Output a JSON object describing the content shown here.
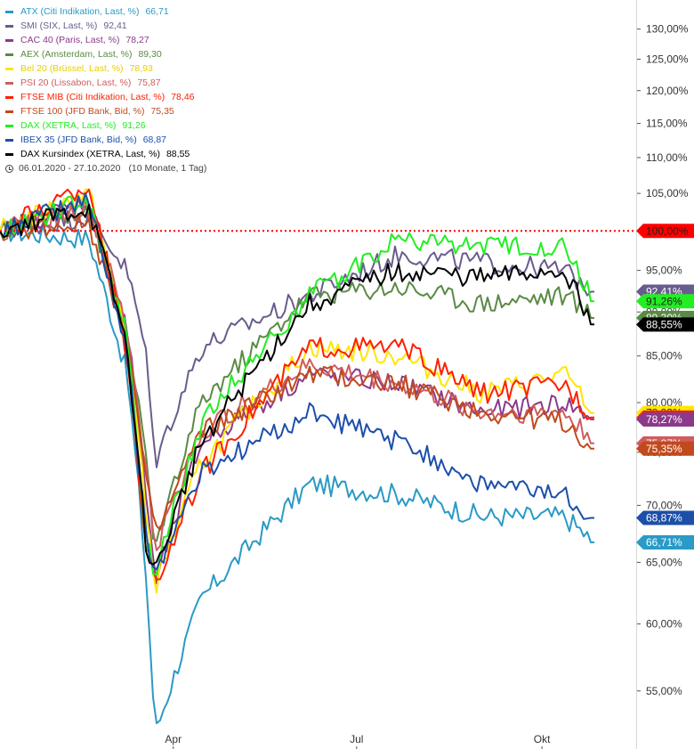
{
  "chart_data": {
    "type": "line",
    "title": "",
    "xlabel": "",
    "ylabel": "",
    "y_scale": "log",
    "ylim": [
      51,
      135
    ],
    "y_ticks": [
      "55,00%",
      "60,00%",
      "65,00%",
      "70,00%",
      "75,00%",
      "80,00%",
      "85,00%",
      "90,00%",
      "95,00%",
      "100,00%",
      "105,00%",
      "110,00%",
      "115,00%",
      "120,00%",
      "125,00%",
      "130,00%"
    ],
    "y_tick_values": [
      55,
      60,
      65,
      70,
      75,
      80,
      85,
      90,
      95,
      100,
      105,
      110,
      115,
      120,
      125,
      130
    ],
    "x_ticks": [
      "Apr",
      "Jul",
      "Okt"
    ],
    "x_tick_dates": [
      "2020-04-01",
      "2020-07-01",
      "2020-10-01"
    ],
    "date_range": [
      "2020-01-06",
      "2020-10-27"
    ],
    "period_text": "06.01.2020 - 27.10.2020",
    "period_span": "(10 Monate, 1 Tag)",
    "reference_line": {
      "value": 100,
      "label": "100,00%",
      "color": "#ff0000"
    },
    "legend_position": "top-left",
    "keypoint_dates": [
      "2020-01-06",
      "2020-02-19",
      "2020-03-09",
      "2020-03-18",
      "2020-03-23",
      "2020-04-15",
      "2020-06-08",
      "2020-07-22",
      "2020-09-01",
      "2020-10-12",
      "2020-10-27"
    ],
    "series": [
      {
        "name": "ATX (Citi Indikation, Last, %)",
        "last": "66,71",
        "end_label": "66,71%",
        "color": "#2a9ac6",
        "values": [
          100,
          99,
          83,
          65,
          52,
          62,
          72,
          71,
          69,
          69,
          66.71
        ]
      },
      {
        "name": "SMI (SIX, Last, %)",
        "last": "92,41",
        "end_label": "92,41%",
        "color": "#6a5c8c",
        "values": [
          100,
          102,
          95,
          86,
          74,
          86,
          92,
          97,
          96,
          95,
          92.41
        ]
      },
      {
        "name": "CAC 40 (Paris, Last, %)",
        "last": "78,27",
        "end_label": "78,27%",
        "color": "#8b3a8b",
        "values": [
          100,
          104,
          88,
          72,
          63,
          76,
          83,
          82,
          79,
          80,
          78.27
        ]
      },
      {
        "name": "AEX (Amsterdam, Last, %)",
        "last": "89,30",
        "end_label": "89,30%",
        "color": "#5a8a45",
        "values": [
          100,
          103,
          87,
          75,
          66,
          80,
          92,
          93,
          91,
          92,
          89.3
        ]
      },
      {
        "name": "Bel 20 (Brüssel, Last, %)",
        "last": "78,93",
        "end_label": "78,93%",
        "color": "#ffe600",
        "values": [
          100,
          105,
          87,
          70,
          63,
          74,
          86,
          85,
          81,
          83,
          78.93
        ]
      },
      {
        "name": "PSI 20 (Lissabon, Last, %)",
        "last": "75,87",
        "end_label": "75,87%",
        "color": "#cf5d5d",
        "values": [
          100,
          103,
          88,
          74,
          66,
          77,
          84,
          82,
          79,
          79,
          75.87
        ]
      },
      {
        "name": "FTSE MIB (Citi Indikation, Last, %)",
        "last": "78,46",
        "end_label": "78,46%",
        "color": "#ff2000",
        "values": [
          100,
          106,
          85,
          67,
          63,
          73,
          86,
          86,
          81,
          82,
          78.46
        ]
      },
      {
        "name": "FTSE 100 (JFD Bank, Bid, %)",
        "last": "75,35",
        "end_label": "75,35%",
        "color": "#c04a1e",
        "values": [
          100,
          101,
          87,
          73,
          67,
          77,
          83,
          82,
          79,
          78,
          75.35
        ]
      },
      {
        "name": "DAX (XETRA, Last, %)",
        "last": "91,26",
        "end_label": "91,26%",
        "color": "#22ee22",
        "values": [
          100,
          104,
          87,
          67,
          64,
          78,
          92,
          99,
          98,
          98,
          91.26
        ]
      },
      {
        "name": "IBEX 35 (JFD Bank, Bid, %)",
        "last": "68,87",
        "end_label": "68,87%",
        "color": "#1c4faa",
        "values": [
          100,
          104,
          85,
          68,
          64,
          73,
          79,
          76,
          72,
          71,
          68.87
        ]
      },
      {
        "name": "DAX Kursindex (XETRA, Last, %)",
        "last": "88,55",
        "end_label": "88,55%",
        "color": "#000000",
        "values": [
          100,
          103,
          86,
          67,
          64,
          76,
          91,
          95,
          94,
          95,
          88.55
        ]
      }
    ]
  }
}
